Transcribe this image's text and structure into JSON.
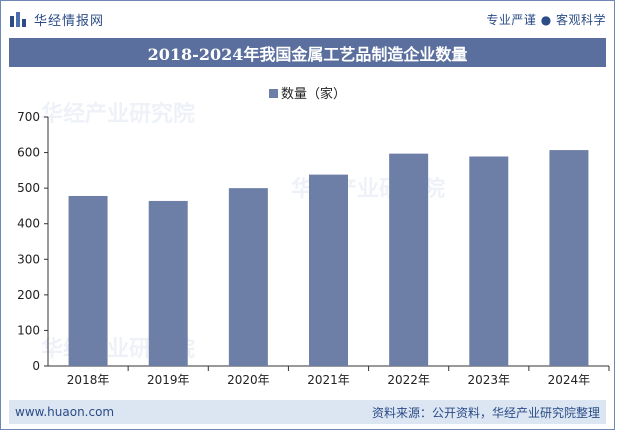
{
  "header": {
    "brand_name": "华经情报网",
    "slogan": "专业严谨 ● 客观科学"
  },
  "watermark": {
    "brand": "华经产业研究院",
    "url": "www.huaon.com"
  },
  "footer": {
    "url": "www.huaon.com",
    "source": "资料来源：公开资料，华经产业研究院整理"
  },
  "colors": {
    "bar": "#6d7fa6",
    "title_bar": "#5a6f9d",
    "footer_bg": "#dce6f3",
    "brand_text": "#2b4c86"
  },
  "chart_data": {
    "type": "bar",
    "title": "2018-2024年我国金属工艺品制造企业数量",
    "categories": [
      "2018年",
      "2019年",
      "2020年",
      "2021年",
      "2022年",
      "2023年",
      "2024年"
    ],
    "series": [
      {
        "name": "数量（家）",
        "values": [
          478,
          464,
          500,
          538,
          597,
          589,
          607
        ]
      }
    ],
    "ylim": [
      0,
      700
    ],
    "yticks": [
      0,
      100,
      200,
      300,
      400,
      500,
      600,
      700
    ],
    "legend_position": "top-center",
    "grid": false
  }
}
